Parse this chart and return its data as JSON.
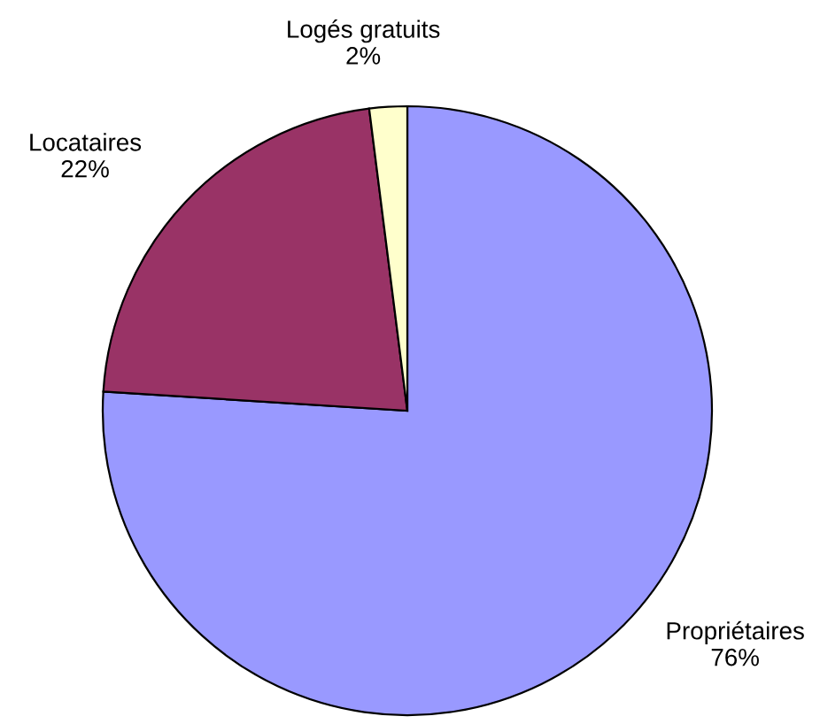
{
  "chart_data": {
    "type": "pie",
    "categories": [
      "Propriétaires",
      "Locataires",
      "Logés gratuits"
    ],
    "values": [
      76,
      22,
      2
    ],
    "colors": [
      "#9999ff",
      "#993366",
      "#ffffcc"
    ],
    "value_labels": [
      "76%",
      "22%",
      "2%"
    ]
  }
}
